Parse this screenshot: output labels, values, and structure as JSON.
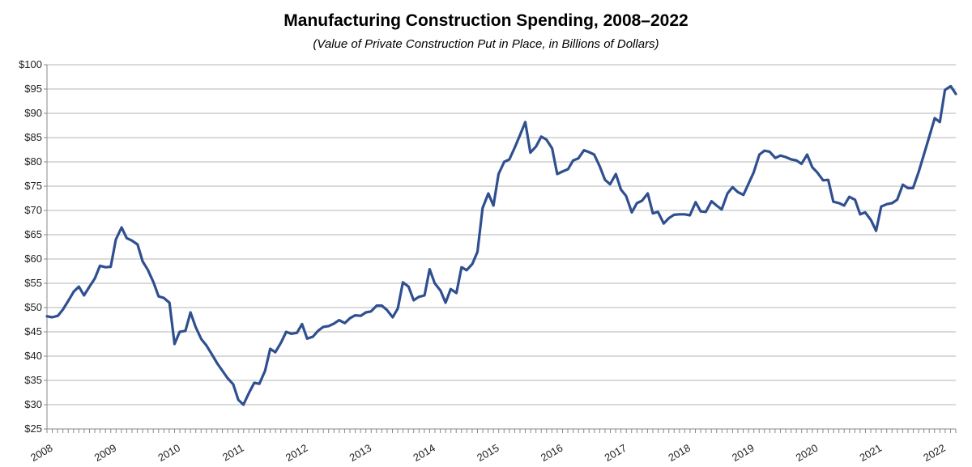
{
  "chart_data": {
    "type": "line",
    "title": "Manufacturing Construction Spending, 2008–2022",
    "subtitle": "(Value of Private Construction Put in Place, in Billions of Dollars)",
    "xlabel": "",
    "ylabel": "",
    "ylim": [
      25,
      100
    ],
    "y_ticks": [
      25,
      30,
      35,
      40,
      45,
      50,
      55,
      60,
      65,
      70,
      75,
      80,
      85,
      90,
      95,
      100
    ],
    "y_tick_labels": [
      "$25",
      "$30",
      "$35",
      "$40",
      "$45",
      "$50",
      "$55",
      "$60",
      "$65",
      "$70",
      "$75",
      "$80",
      "$85",
      "$90",
      "$95",
      "$100"
    ],
    "x_range": [
      2008,
      2022.25
    ],
    "x_tick_labels": [
      "2008",
      "2009",
      "2010",
      "2011",
      "2012",
      "2013",
      "2014",
      "2015",
      "2016",
      "2017",
      "2018",
      "2019",
      "2020",
      "2021",
      "2022"
    ],
    "grid": true,
    "line_color": "#2f4f8f",
    "series": [
      {
        "name": "Manufacturing construction spending",
        "points": [
          [
            2008.0,
            48.2
          ],
          [
            2008.08,
            48.0
          ],
          [
            2008.17,
            48.3
          ],
          [
            2008.25,
            49.6
          ],
          [
            2008.33,
            51.3
          ],
          [
            2008.42,
            53.3
          ],
          [
            2008.5,
            54.3
          ],
          [
            2008.58,
            52.5
          ],
          [
            2008.67,
            54.4
          ],
          [
            2008.75,
            56.0
          ],
          [
            2008.83,
            58.6
          ],
          [
            2008.92,
            58.3
          ],
          [
            2009.0,
            58.4
          ],
          [
            2009.08,
            64.0
          ],
          [
            2009.17,
            66.5
          ],
          [
            2009.25,
            64.3
          ],
          [
            2009.33,
            63.8
          ],
          [
            2009.42,
            63.0
          ],
          [
            2009.5,
            59.5
          ],
          [
            2009.58,
            57.8
          ],
          [
            2009.67,
            55.2
          ],
          [
            2009.75,
            52.3
          ],
          [
            2009.83,
            52.0
          ],
          [
            2009.92,
            51.0
          ],
          [
            2010.0,
            42.5
          ],
          [
            2010.08,
            45.0
          ],
          [
            2010.17,
            45.2
          ],
          [
            2010.25,
            49.0
          ],
          [
            2010.33,
            46.0
          ],
          [
            2010.42,
            43.5
          ],
          [
            2010.5,
            42.2
          ],
          [
            2010.58,
            40.5
          ],
          [
            2010.67,
            38.5
          ],
          [
            2010.75,
            37.0
          ],
          [
            2010.83,
            35.5
          ],
          [
            2010.92,
            34.2
          ],
          [
            2011.0,
            31.0
          ],
          [
            2011.08,
            30.0
          ],
          [
            2011.17,
            32.5
          ],
          [
            2011.25,
            34.5
          ],
          [
            2011.33,
            34.3
          ],
          [
            2011.42,
            37.0
          ],
          [
            2011.5,
            41.5
          ],
          [
            2011.58,
            40.8
          ],
          [
            2011.67,
            42.8
          ],
          [
            2011.75,
            45.0
          ],
          [
            2011.83,
            44.6
          ],
          [
            2011.92,
            44.8
          ],
          [
            2012.0,
            46.6
          ],
          [
            2012.08,
            43.6
          ],
          [
            2012.17,
            44.0
          ],
          [
            2012.25,
            45.2
          ],
          [
            2012.33,
            46.0
          ],
          [
            2012.42,
            46.2
          ],
          [
            2012.5,
            46.7
          ],
          [
            2012.58,
            47.4
          ],
          [
            2012.67,
            46.8
          ],
          [
            2012.75,
            47.8
          ],
          [
            2012.83,
            48.4
          ],
          [
            2012.92,
            48.3
          ],
          [
            2013.0,
            49.0
          ],
          [
            2013.08,
            49.2
          ],
          [
            2013.17,
            50.4
          ],
          [
            2013.25,
            50.4
          ],
          [
            2013.33,
            49.5
          ],
          [
            2013.42,
            48.0
          ],
          [
            2013.5,
            49.8
          ],
          [
            2013.58,
            55.2
          ],
          [
            2013.67,
            54.3
          ],
          [
            2013.75,
            51.5
          ],
          [
            2013.83,
            52.2
          ],
          [
            2013.92,
            52.5
          ],
          [
            2014.0,
            57.9
          ],
          [
            2014.08,
            55.0
          ],
          [
            2014.17,
            53.5
          ],
          [
            2014.25,
            51.0
          ],
          [
            2014.33,
            53.8
          ],
          [
            2014.42,
            53.0
          ],
          [
            2014.5,
            58.3
          ],
          [
            2014.58,
            57.7
          ],
          [
            2014.67,
            59.0
          ],
          [
            2014.75,
            61.5
          ],
          [
            2014.83,
            70.5
          ],
          [
            2014.92,
            73.5
          ],
          [
            2015.0,
            71.0
          ],
          [
            2015.08,
            77.5
          ],
          [
            2015.17,
            80.0
          ],
          [
            2015.25,
            80.5
          ],
          [
            2015.33,
            82.8
          ],
          [
            2015.42,
            85.6
          ],
          [
            2015.5,
            88.2
          ],
          [
            2015.58,
            81.9
          ],
          [
            2015.67,
            83.2
          ],
          [
            2015.75,
            85.2
          ],
          [
            2015.83,
            84.6
          ],
          [
            2015.92,
            82.8
          ],
          [
            2016.0,
            77.5
          ],
          [
            2016.08,
            78.0
          ],
          [
            2016.17,
            78.5
          ],
          [
            2016.25,
            80.3
          ],
          [
            2016.33,
            80.7
          ],
          [
            2016.42,
            82.4
          ],
          [
            2016.5,
            82.0
          ],
          [
            2016.58,
            81.5
          ],
          [
            2016.67,
            79.0
          ],
          [
            2016.75,
            76.3
          ],
          [
            2016.83,
            75.4
          ],
          [
            2016.92,
            77.5
          ],
          [
            2017.0,
            74.3
          ],
          [
            2017.08,
            73.0
          ],
          [
            2017.17,
            69.6
          ],
          [
            2017.25,
            71.5
          ],
          [
            2017.33,
            72.0
          ],
          [
            2017.42,
            73.5
          ],
          [
            2017.5,
            69.4
          ],
          [
            2017.58,
            69.7
          ],
          [
            2017.67,
            67.3
          ],
          [
            2017.75,
            68.4
          ],
          [
            2017.83,
            69.1
          ],
          [
            2017.92,
            69.2
          ],
          [
            2018.0,
            69.2
          ],
          [
            2018.08,
            69.0
          ],
          [
            2018.17,
            71.7
          ],
          [
            2018.25,
            69.8
          ],
          [
            2018.33,
            69.7
          ],
          [
            2018.42,
            71.9
          ],
          [
            2018.5,
            71.0
          ],
          [
            2018.58,
            70.2
          ],
          [
            2018.67,
            73.5
          ],
          [
            2018.75,
            74.8
          ],
          [
            2018.83,
            73.8
          ],
          [
            2018.92,
            73.2
          ],
          [
            2019.0,
            75.5
          ],
          [
            2019.08,
            77.8
          ],
          [
            2019.17,
            81.5
          ],
          [
            2019.25,
            82.3
          ],
          [
            2019.33,
            82.1
          ],
          [
            2019.42,
            80.8
          ],
          [
            2019.5,
            81.3
          ],
          [
            2019.58,
            81.0
          ],
          [
            2019.67,
            80.5
          ],
          [
            2019.75,
            80.3
          ],
          [
            2019.83,
            79.6
          ],
          [
            2019.92,
            81.5
          ],
          [
            2020.0,
            78.9
          ],
          [
            2020.08,
            77.8
          ],
          [
            2020.17,
            76.2
          ],
          [
            2020.25,
            76.3
          ],
          [
            2020.33,
            71.8
          ],
          [
            2020.42,
            71.5
          ],
          [
            2020.5,
            71.0
          ],
          [
            2020.58,
            72.8
          ],
          [
            2020.67,
            72.2
          ],
          [
            2020.75,
            69.2
          ],
          [
            2020.83,
            69.6
          ],
          [
            2020.92,
            68.0
          ],
          [
            2021.0,
            65.8
          ],
          [
            2021.08,
            70.8
          ],
          [
            2021.17,
            71.3
          ],
          [
            2021.25,
            71.5
          ],
          [
            2021.33,
            72.2
          ],
          [
            2021.42,
            75.3
          ],
          [
            2021.5,
            74.6
          ],
          [
            2021.58,
            74.6
          ],
          [
            2021.67,
            78.0
          ],
          [
            2021.75,
            81.5
          ],
          [
            2021.83,
            85.0
          ],
          [
            2021.92,
            89.0
          ],
          [
            2022.0,
            88.2
          ],
          [
            2022.08,
            94.8
          ],
          [
            2022.17,
            95.6
          ],
          [
            2022.25,
            94.0
          ]
        ]
      }
    ]
  }
}
